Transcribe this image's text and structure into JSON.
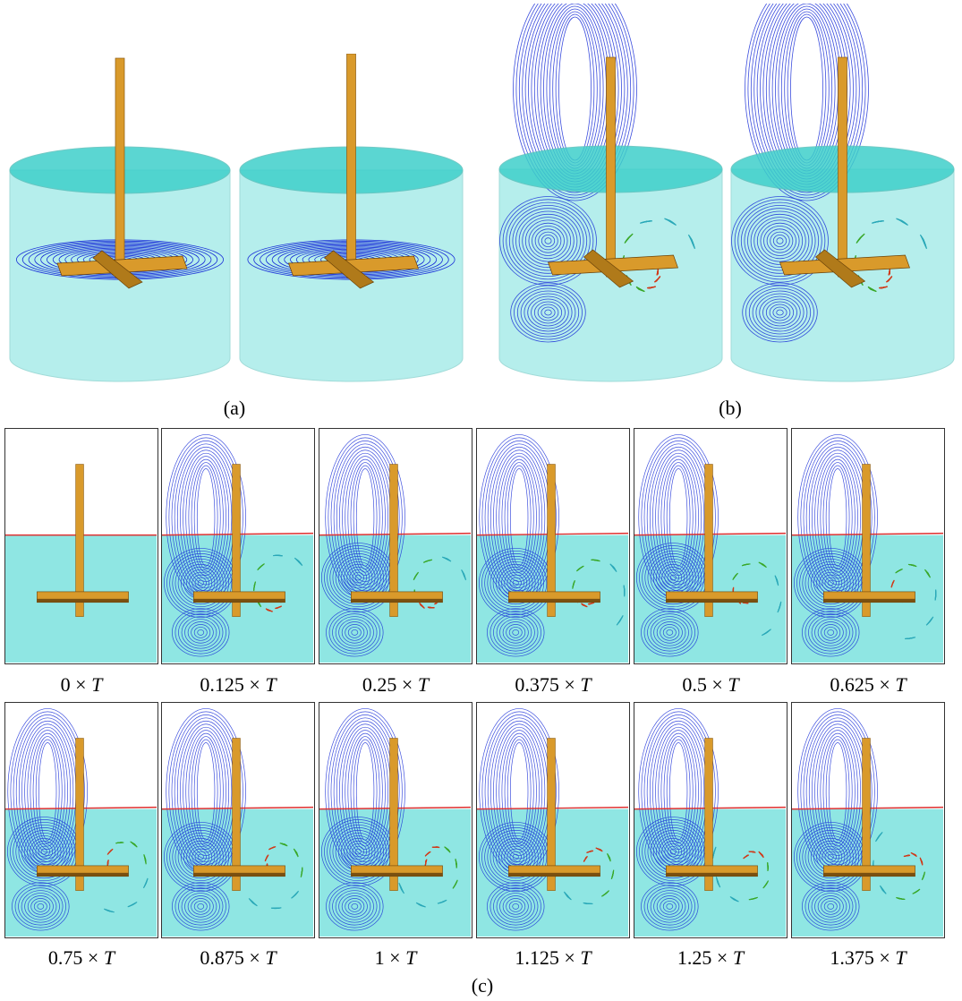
{
  "captions": {
    "a": "(a)",
    "b": "(b)",
    "c": "(c)"
  },
  "frames": [
    {
      "label": "0 × ",
      "T": "T",
      "phase": 0,
      "flow": false
    },
    {
      "label": "0.125 × ",
      "T": "T",
      "phase": 1,
      "flow": true
    },
    {
      "label": "0.25 × ",
      "T": "T",
      "phase": 2,
      "flow": true
    },
    {
      "label": "0.375 × ",
      "T": "T",
      "phase": 3,
      "flow": true
    },
    {
      "label": "0.5 × ",
      "T": "T",
      "phase": 4,
      "flow": true
    },
    {
      "label": "0.625 × ",
      "T": "T",
      "phase": 5,
      "flow": true
    },
    {
      "label": "0.75 × ",
      "T": "T",
      "phase": 6,
      "flow": true
    },
    {
      "label": "0.875 × ",
      "T": "T",
      "phase": 7,
      "flow": true
    },
    {
      "label": "1 × ",
      "T": "T",
      "phase": 8,
      "flow": true
    },
    {
      "label": "1.125 × ",
      "T": "T",
      "phase": 9,
      "flow": true
    },
    {
      "label": "1.25 × ",
      "T": "T",
      "phase": 10,
      "flow": true
    },
    {
      "label": "1.375 × ",
      "T": "T",
      "phase": 11,
      "flow": true
    }
  ],
  "colors": {
    "water": "#8fe6e3",
    "water_top": "#3fd0cb",
    "shaft": "#d99a2b",
    "streamline": "#1a2fd8",
    "free_surface": "#e03030",
    "vector_warm": "#d03a1a",
    "vector_mid": "#3aa82a",
    "vector_cool": "#2aa8b8"
  }
}
